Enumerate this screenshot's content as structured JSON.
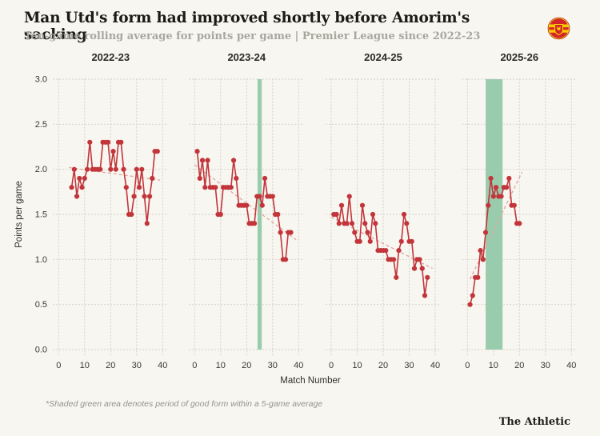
{
  "header": {
    "title": "Man Utd's form had improved shortly before Amorim's sacking",
    "subtitle": "Ten-game rolling average for points per game | Premier League since 2022-23"
  },
  "y_axis": {
    "label": "Points per game",
    "tick_values": [
      3.0,
      2.5,
      2.0,
      1.5,
      1.0,
      0.5,
      0.0
    ],
    "tick_labels": [
      "3.0",
      "2.5",
      "2.0",
      "1.5",
      "1.0",
      "0.5",
      "0.0"
    ]
  },
  "x_axis": {
    "label": "Match Number",
    "tick_values": [
      0,
      10,
      20,
      30,
      40
    ]
  },
  "footnote": "*Shaded green area denotes period of good form within a 5-game average",
  "credit": "The Athletic",
  "colors": {
    "background": "#f7f6f0",
    "line_red": "#c2353b",
    "trend_pink": "#e2a49f",
    "band_green": "#99ccad",
    "grid": "#d6d4ca",
    "tick_text": "#3a3a36",
    "panel_title": "#2b2b27"
  },
  "chart_data": {
    "type": "line",
    "title": "Man Utd's form had improved shortly before Amorim's sacking",
    "subtitle": "Ten-game rolling average for points per game | Premier League since 2022-23",
    "xlabel": "Match Number",
    "ylabel": "Points per game",
    "ylim": [
      0.0,
      3.0
    ],
    "xlim_per_panel": [
      -2,
      42
    ],
    "grid": "dotted",
    "legend_position": "none",
    "x_ticks": [
      0,
      10,
      20,
      30,
      40
    ],
    "y_ticks": [
      3.0,
      2.5,
      2.0,
      1.5,
      1.0,
      0.5,
      0.0
    ],
    "annotations": [
      "*Shaded green area denotes period of good form within a 5-game average"
    ],
    "panels": [
      {
        "season": "2022-23",
        "x_start": 5,
        "values": [
          1.8,
          2.0,
          1.7,
          1.9,
          1.8,
          1.9,
          2.0,
          2.3,
          2.0,
          2.0,
          2.0,
          2.0,
          2.3,
          2.3,
          2.3,
          2.0,
          2.2,
          2.0,
          2.3,
          2.3,
          2.0,
          1.8,
          1.5,
          1.5,
          1.7,
          2.0,
          1.8,
          2.0,
          1.7,
          1.4,
          1.7,
          1.9,
          2.2,
          2.2
        ],
        "trend": {
          "x1": 4,
          "v1": 2.02,
          "x2": 39,
          "v2": 1.88
        },
        "band": null
      },
      {
        "season": "2023-24",
        "x_start": 1,
        "values": [
          2.2,
          1.9,
          2.1,
          1.8,
          2.1,
          1.8,
          1.8,
          1.8,
          1.5,
          1.5,
          1.8,
          1.8,
          1.8,
          1.8,
          2.1,
          1.9,
          1.6,
          1.6,
          1.6,
          1.6,
          1.4,
          1.4,
          1.4,
          1.7,
          1.7,
          1.6,
          1.9,
          1.7,
          1.7,
          1.7,
          1.5,
          1.5,
          1.3,
          1.0,
          1.0,
          1.3,
          1.3
        ],
        "trend": {
          "x1": 0,
          "v1": 2.05,
          "x2": 39,
          "v2": 1.22
        },
        "band": {
          "x1": 24.2,
          "x2": 25.8
        }
      },
      {
        "season": "2024-25",
        "x_start": 1,
        "values": [
          1.5,
          1.5,
          1.4,
          1.6,
          1.4,
          1.4,
          1.7,
          1.4,
          1.3,
          1.2,
          1.2,
          1.6,
          1.4,
          1.3,
          1.2,
          1.5,
          1.4,
          1.1,
          1.1,
          1.1,
          1.1,
          1.0,
          1.0,
          1.0,
          0.8,
          1.1,
          1.2,
          1.5,
          1.4,
          1.2,
          1.2,
          0.9,
          1.0,
          1.0,
          0.9,
          0.6,
          0.8
        ],
        "trend": {
          "x1": 0,
          "v1": 1.47,
          "x2": 39,
          "v2": 0.9
        },
        "band": null
      },
      {
        "season": "2025-26",
        "x_start": 1,
        "values": [
          0.5,
          0.6,
          0.8,
          0.8,
          1.1,
          1.0,
          1.3,
          1.6,
          1.9,
          1.7,
          1.8,
          1.7,
          1.7,
          1.8,
          1.8,
          1.9,
          1.6,
          1.6,
          1.4,
          1.4
        ],
        "trend": {
          "x1": 1,
          "v1": 0.78,
          "x2": 21,
          "v2": 1.97
        },
        "band": {
          "x1": 7.0,
          "x2": 13.5
        }
      }
    ]
  }
}
